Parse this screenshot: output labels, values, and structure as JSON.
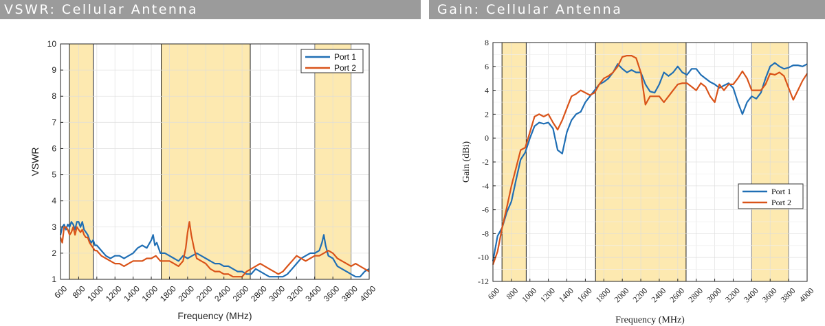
{
  "colors": {
    "port1": "#1f6eb4",
    "port2": "#d95319",
    "band_fill": "#fde9b0",
    "grid": "#dcdcdc",
    "header_bar": "#9b9b9b"
  },
  "chart_data": [
    {
      "type": "line",
      "title": "VSWR: Cellular Antenna",
      "xlabel": "Frequency (MHz)",
      "ylabel": "VSWR",
      "xlim": [
        600,
        4000
      ],
      "ylim": [
        1,
        10
      ],
      "xticks": [
        600,
        800,
        1000,
        1200,
        1400,
        1600,
        1800,
        2000,
        2200,
        2400,
        2600,
        2800,
        3000,
        3200,
        3400,
        3600,
        3800,
        4000
      ],
      "yticks": [
        1,
        2,
        3,
        4,
        5,
        6,
        7,
        8,
        9,
        10
      ],
      "grid": true,
      "legend_position": "top-right",
      "shaded_bands": [
        [
          698,
          960
        ],
        [
          1710,
          2690
        ],
        [
          3400,
          3800
        ]
      ],
      "series": [
        {
          "name": "Port 1",
          "x": [
            600,
            620,
            640,
            660,
            680,
            700,
            720,
            740,
            760,
            780,
            800,
            820,
            840,
            860,
            880,
            900,
            920,
            940,
            960,
            980,
            1000,
            1050,
            1100,
            1150,
            1200,
            1250,
            1300,
            1350,
            1400,
            1450,
            1500,
            1550,
            1600,
            1620,
            1640,
            1660,
            1700,
            1750,
            1800,
            1850,
            1900,
            1950,
            2000,
            2050,
            2100,
            2150,
            2200,
            2250,
            2300,
            2350,
            2400,
            2450,
            2500,
            2550,
            2600,
            2650,
            2700,
            2750,
            2800,
            2850,
            2900,
            2950,
            3000,
            3050,
            3100,
            3150,
            3200,
            3250,
            3300,
            3350,
            3400,
            3450,
            3480,
            3500,
            3520,
            3550,
            3600,
            3650,
            3700,
            3750,
            3800,
            3850,
            3900,
            3950,
            4000
          ],
          "values": [
            2.7,
            3.0,
            3.1,
            2.9,
            3.1,
            3.0,
            3.2,
            3.1,
            2.9,
            3.2,
            3.2,
            3.0,
            3.2,
            2.9,
            2.8,
            2.7,
            2.5,
            2.4,
            2.5,
            2.3,
            2.3,
            2.1,
            1.9,
            1.8,
            1.9,
            1.9,
            1.8,
            1.9,
            2.0,
            2.2,
            2.3,
            2.2,
            2.5,
            2.7,
            2.3,
            2.4,
            2.0,
            2.0,
            1.9,
            1.8,
            1.7,
            1.9,
            1.8,
            1.9,
            2.0,
            1.9,
            1.8,
            1.7,
            1.6,
            1.6,
            1.5,
            1.5,
            1.4,
            1.3,
            1.3,
            1.2,
            1.2,
            1.4,
            1.3,
            1.2,
            1.1,
            1.1,
            1.1,
            1.1,
            1.2,
            1.4,
            1.6,
            1.8,
            1.9,
            2.0,
            2.0,
            2.1,
            2.4,
            2.7,
            2.3,
            1.9,
            1.8,
            1.5,
            1.4,
            1.3,
            1.2,
            1.1,
            1.1,
            1.3,
            1.4
          ]
        },
        {
          "name": "Port 2",
          "x": [
            600,
            620,
            640,
            660,
            680,
            700,
            720,
            740,
            760,
            780,
            800,
            820,
            840,
            860,
            880,
            900,
            920,
            940,
            960,
            980,
            1000,
            1050,
            1100,
            1150,
            1200,
            1250,
            1300,
            1350,
            1400,
            1450,
            1500,
            1550,
            1600,
            1650,
            1700,
            1750,
            1800,
            1850,
            1900,
            1950,
            1980,
            2000,
            2020,
            2040,
            2070,
            2100,
            2150,
            2200,
            2250,
            2300,
            2350,
            2400,
            2450,
            2500,
            2550,
            2600,
            2650,
            2700,
            2750,
            2800,
            2850,
            2900,
            2950,
            3000,
            3050,
            3100,
            3150,
            3200,
            3250,
            3300,
            3350,
            3400,
            3450,
            3500,
            3550,
            3600,
            3650,
            3700,
            3750,
            3800,
            3850,
            3900,
            3950,
            4000
          ],
          "values": [
            2.6,
            2.4,
            3.0,
            3.0,
            2.9,
            2.7,
            2.8,
            3.0,
            2.7,
            3.0,
            2.9,
            2.8,
            2.9,
            2.7,
            2.6,
            2.6,
            2.4,
            2.3,
            2.2,
            2.1,
            2.1,
            1.9,
            1.8,
            1.7,
            1.6,
            1.6,
            1.5,
            1.6,
            1.7,
            1.7,
            1.7,
            1.8,
            1.8,
            1.9,
            1.7,
            1.7,
            1.7,
            1.6,
            1.5,
            1.7,
            2.2,
            2.8,
            3.2,
            2.7,
            2.2,
            1.8,
            1.7,
            1.6,
            1.4,
            1.3,
            1.3,
            1.2,
            1.2,
            1.1,
            1.1,
            1.1,
            1.3,
            1.4,
            1.5,
            1.6,
            1.5,
            1.4,
            1.3,
            1.2,
            1.3,
            1.5,
            1.7,
            1.9,
            1.8,
            1.7,
            1.8,
            1.9,
            1.9,
            2.0,
            2.1,
            2.0,
            1.8,
            1.7,
            1.6,
            1.5,
            1.6,
            1.5,
            1.4,
            1.3
          ]
        }
      ]
    },
    {
      "type": "line",
      "title": "Gain: Cellular Antenna",
      "xlabel": "Frequency (MHz)",
      "ylabel": "Gain (dBi)",
      "xlim": [
        600,
        4000
      ],
      "ylim": [
        -12,
        8
      ],
      "xticks": [
        600,
        800,
        1000,
        1200,
        1400,
        1600,
        1800,
        2000,
        2200,
        2400,
        2600,
        2800,
        3000,
        3200,
        3400,
        3600,
        3800,
        4000
      ],
      "yticks": [
        -12,
        -10,
        -8,
        -6,
        -4,
        -2,
        0,
        2,
        4,
        6,
        8
      ],
      "grid": true,
      "legend_position": "bottom-right",
      "shaded_bands": [
        [
          698,
          960
        ],
        [
          1710,
          2690
        ],
        [
          3400,
          3800
        ]
      ],
      "series": [
        {
          "name": "Port 1",
          "x": [
            600,
            650,
            700,
            750,
            800,
            850,
            900,
            950,
            1000,
            1050,
            1100,
            1150,
            1200,
            1250,
            1300,
            1350,
            1400,
            1450,
            1500,
            1550,
            1600,
            1650,
            1700,
            1750,
            1800,
            1850,
            1900,
            1950,
            2000,
            2050,
            2100,
            2150,
            2200,
            2250,
            2300,
            2350,
            2400,
            2450,
            2500,
            2550,
            2600,
            2650,
            2700,
            2750,
            2800,
            2850,
            2900,
            2950,
            3000,
            3050,
            3100,
            3150,
            3200,
            3250,
            3300,
            3350,
            3400,
            3450,
            3500,
            3550,
            3600,
            3650,
            3700,
            3750,
            3800,
            3850,
            3900,
            3950,
            4000
          ],
          "values": [
            -10.3,
            -8.2,
            -7.5,
            -6.2,
            -5.3,
            -3.5,
            -1.8,
            -1.2,
            0.0,
            1.0,
            1.3,
            1.2,
            1.3,
            0.8,
            -1.0,
            -1.3,
            0.5,
            1.5,
            2.0,
            2.2,
            3.0,
            3.5,
            4.0,
            4.5,
            4.7,
            5.0,
            5.5,
            6.2,
            5.8,
            5.5,
            5.7,
            5.5,
            5.5,
            4.5,
            3.9,
            3.8,
            4.5,
            5.5,
            5.2,
            5.5,
            6.0,
            5.5,
            5.3,
            5.8,
            5.8,
            5.3,
            5.0,
            4.7,
            4.5,
            4.2,
            4.4,
            4.6,
            4.2,
            3.0,
            2.0,
            3.0,
            3.5,
            3.3,
            3.8,
            5.0,
            6.0,
            6.3,
            6.0,
            5.8,
            5.9,
            6.1,
            6.1,
            6.0,
            6.2
          ]
        },
        {
          "name": "Port 2",
          "x": [
            600,
            650,
            700,
            750,
            800,
            850,
            900,
            950,
            1000,
            1050,
            1100,
            1150,
            1200,
            1250,
            1300,
            1350,
            1400,
            1450,
            1500,
            1550,
            1600,
            1650,
            1700,
            1750,
            1800,
            1850,
            1900,
            1950,
            2000,
            2050,
            2100,
            2150,
            2200,
            2250,
            2300,
            2350,
            2400,
            2450,
            2500,
            2550,
            2600,
            2650,
            2700,
            2750,
            2800,
            2850,
            2900,
            2950,
            3000,
            3050,
            3100,
            3150,
            3200,
            3250,
            3300,
            3350,
            3400,
            3450,
            3500,
            3550,
            3600,
            3650,
            3700,
            3750,
            3800,
            3850,
            3900,
            3950,
            4000
          ],
          "values": [
            -10.6,
            -9.5,
            -7.5,
            -5.8,
            -4.0,
            -2.5,
            -1.0,
            -0.8,
            0.5,
            1.8,
            2.0,
            1.8,
            2.0,
            1.3,
            0.7,
            1.5,
            2.5,
            3.5,
            3.7,
            4.0,
            3.8,
            3.6,
            3.8,
            4.5,
            5.0,
            5.2,
            5.5,
            6.0,
            6.8,
            6.9,
            6.9,
            6.7,
            5.5,
            2.8,
            3.5,
            3.5,
            3.5,
            3.0,
            3.5,
            4.0,
            4.5,
            4.6,
            4.6,
            4.3,
            4.0,
            4.6,
            4.3,
            3.5,
            3.0,
            4.5,
            4.0,
            4.5,
            4.5,
            5.0,
            5.6,
            5.0,
            4.0,
            4.0,
            4.0,
            4.5,
            5.4,
            5.3,
            5.5,
            5.2,
            4.2,
            3.2,
            4.0,
            4.8,
            5.4
          ]
        }
      ]
    }
  ]
}
